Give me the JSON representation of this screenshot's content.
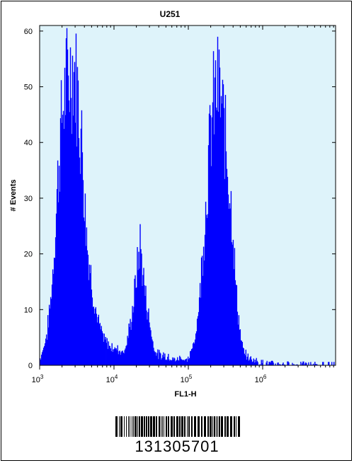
{
  "chart_data": {
    "type": "area",
    "title": "U251",
    "xlabel": "FL1-H",
    "ylabel": "# Events",
    "x_scale": "log",
    "xlim": [
      1000,
      10000000
    ],
    "ylim": [
      0,
      61
    ],
    "x_ticks": [
      {
        "value": 1000,
        "base": "10",
        "exp": "3"
      },
      {
        "value": 10000,
        "base": "10",
        "exp": "4"
      },
      {
        "value": 100000,
        "base": "10",
        "exp": "5"
      },
      {
        "value": 1000000,
        "base": "10",
        "exp": "6"
      }
    ],
    "y_ticks": [
      0,
      10,
      20,
      30,
      40,
      50,
      60
    ],
    "grid": false,
    "colors": {
      "fill": "#0000ff",
      "plot_bg": "#def3fa"
    },
    "series": [
      {
        "log10_x": [
          3.0,
          3.05,
          3.1,
          3.15,
          3.2,
          3.25,
          3.3,
          3.35,
          3.4,
          3.45,
          3.5,
          3.55,
          3.58,
          3.6,
          3.63,
          3.65,
          3.7,
          3.75,
          3.8,
          3.85,
          3.9,
          3.95,
          4.0,
          4.05,
          4.1,
          4.15,
          4.2,
          4.25,
          4.3,
          4.35,
          4.4,
          4.45,
          4.5,
          4.52,
          4.55,
          4.58,
          4.6,
          4.63,
          4.66,
          4.7,
          4.75,
          4.8,
          4.85,
          4.9,
          4.95,
          5.0,
          5.05,
          5.1,
          5.15,
          5.2,
          5.25,
          5.3,
          5.35,
          5.4,
          5.45,
          5.5,
          5.55,
          5.6,
          5.62,
          5.65,
          5.68,
          5.7,
          5.73,
          5.76,
          5.8,
          5.85,
          5.9,
          5.95,
          6.0,
          6.05,
          6.1,
          6.15,
          6.2,
          6.3,
          6.4,
          6.5,
          6.6,
          6.7,
          6.8,
          6.9,
          7.0
        ],
        "y": [
          1,
          3,
          6,
          12,
          22,
          35,
          45,
          50,
          52,
          54,
          50,
          42,
          38,
          30,
          24,
          20,
          15,
          10,
          7,
          5,
          4,
          3.5,
          3,
          3,
          2.5,
          3,
          6,
          10,
          16,
          22,
          15,
          10,
          6,
          4,
          3,
          2,
          2,
          1.5,
          2,
          1.5,
          1.5,
          1,
          1,
          1.5,
          1,
          1,
          3,
          6,
          12,
          22,
          32,
          42,
          48,
          50,
          46,
          40,
          33,
          25,
          18,
          12,
          8,
          5,
          3,
          2,
          1.5,
          1,
          1,
          0.5,
          0.5,
          0.3,
          0.3,
          0.2,
          0.2,
          0.2,
          0.1,
          0.1,
          0.1,
          0.1,
          0,
          0,
          0
        ]
      }
    ]
  },
  "barcode": {
    "number": "131305701"
  }
}
